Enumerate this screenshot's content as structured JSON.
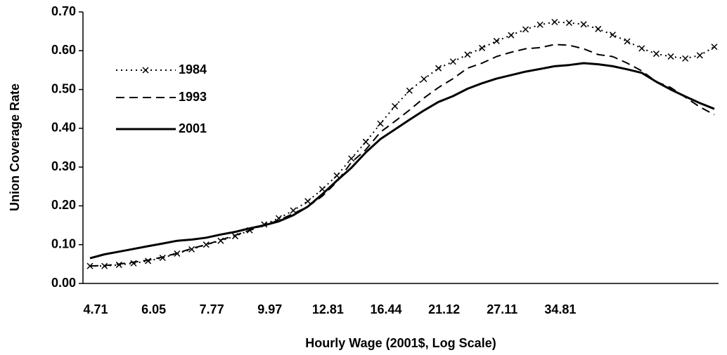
{
  "chart_data": {
    "type": "line",
    "ylabel": "Union Coverage Rate",
    "xlabel": "Hourly Wage (2001$, Log Scale)",
    "categories": [
      "4.71",
      null,
      null,
      null,
      "6.05",
      null,
      null,
      null,
      "7.77",
      null,
      null,
      null,
      "9.97",
      null,
      null,
      null,
      "12.81",
      null,
      null,
      null,
      "16.44",
      null,
      null,
      null,
      "21.12",
      null,
      null,
      null,
      "27.11",
      null,
      null,
      null,
      "34.81",
      null,
      null,
      null,
      null,
      null,
      null,
      null,
      null,
      null,
      null,
      null
    ],
    "ylim": [
      0,
      0.7
    ],
    "yticks": [
      {
        "value": 0,
        "label": "0.00"
      },
      {
        "value": 0.1,
        "label": "0.10"
      },
      {
        "value": 0.2,
        "label": "0.20"
      },
      {
        "value": 0.3,
        "label": "0.30"
      },
      {
        "value": 0.4,
        "label": "0.40"
      },
      {
        "value": 0.5,
        "label": "0.50"
      },
      {
        "value": 0.6,
        "label": "0.60"
      },
      {
        "value": 0.7,
        "label": "0.70"
      }
    ],
    "grid": false,
    "legend": "upper left",
    "series": [
      {
        "name": "1984",
        "color": "#000000",
        "dash": "dotted",
        "marker": "x",
        "values": [
          0.045,
          0.045,
          0.048,
          0.052,
          0.058,
          0.066,
          0.077,
          0.088,
          0.1,
          0.11,
          0.122,
          0.137,
          0.152,
          0.168,
          0.188,
          0.212,
          0.243,
          0.278,
          0.322,
          0.365,
          0.412,
          0.457,
          0.497,
          0.527,
          0.555,
          0.572,
          0.59,
          0.607,
          0.625,
          0.64,
          0.655,
          0.667,
          0.674,
          0.672,
          0.668,
          0.656,
          0.641,
          0.624,
          0.606,
          0.592,
          0.585,
          0.58,
          0.588,
          0.61
        ]
      },
      {
        "name": "1993",
        "color": "#000000",
        "dash": "dashed",
        "marker": null,
        "values": [
          0.045,
          0.046,
          0.05,
          0.055,
          0.06,
          0.068,
          0.078,
          0.09,
          0.1,
          0.112,
          0.124,
          0.137,
          0.15,
          0.163,
          0.18,
          0.198,
          0.225,
          0.262,
          0.312,
          0.345,
          0.39,
          0.418,
          0.447,
          0.478,
          0.505,
          0.528,
          0.555,
          0.568,
          0.585,
          0.596,
          0.605,
          0.608,
          0.616,
          0.614,
          0.605,
          0.59,
          0.585,
          0.568,
          0.548,
          0.52,
          0.505,
          0.48,
          0.455,
          0.435
        ]
      },
      {
        "name": "2001",
        "color": "#000000",
        "dash": "solid",
        "marker": null,
        "values": [
          0.065,
          0.075,
          0.082,
          0.089,
          0.096,
          0.103,
          0.11,
          0.113,
          0.118,
          0.126,
          0.133,
          0.142,
          0.15,
          0.16,
          0.176,
          0.198,
          0.23,
          0.265,
          0.298,
          0.338,
          0.372,
          0.397,
          0.422,
          0.446,
          0.468,
          0.483,
          0.502,
          0.516,
          0.528,
          0.537,
          0.546,
          0.553,
          0.56,
          0.563,
          0.568,
          0.565,
          0.56,
          0.552,
          0.543,
          0.52,
          0.5,
          0.482,
          0.465,
          0.45
        ]
      }
    ]
  }
}
